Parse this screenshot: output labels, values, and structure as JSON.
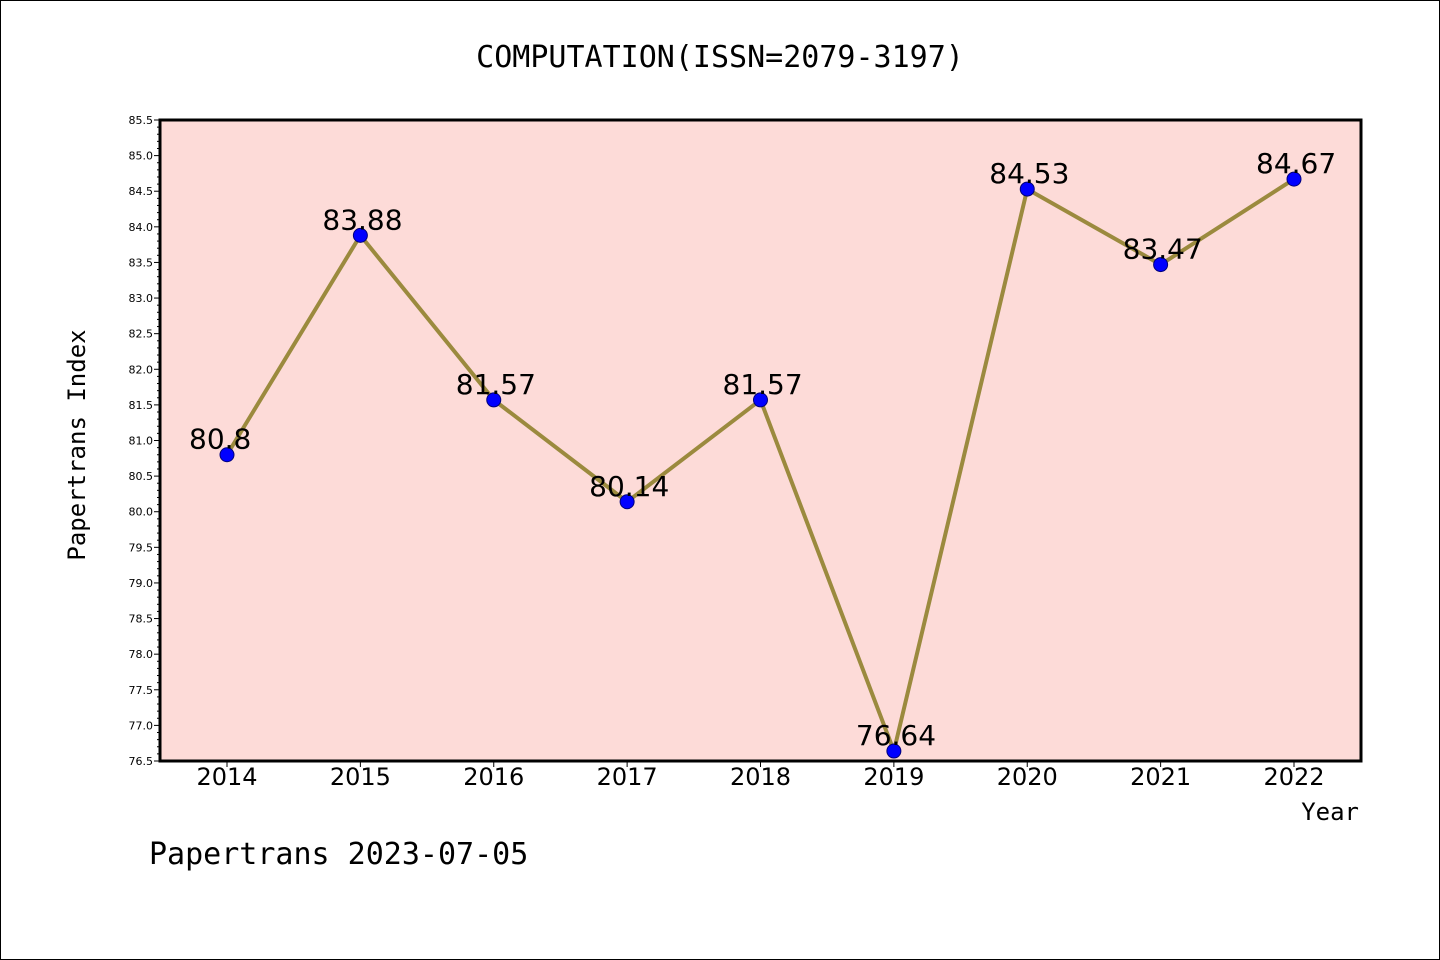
{
  "chart_data": {
    "type": "line",
    "title": "COMPUTATION(ISSN=2079-3197)",
    "xlabel": "Year",
    "ylabel": "Papertrans Index",
    "categories": [
      "2014",
      "2015",
      "2016",
      "2017",
      "2018",
      "2019",
      "2020",
      "2021",
      "2022"
    ],
    "series": [
      {
        "values": [
          80.8,
          83.88,
          81.57,
          80.14,
          81.57,
          76.64,
          84.53,
          83.47,
          84.67
        ],
        "data_labels": [
          "80.8",
          "83.88",
          "81.57",
          "80.14",
          "81.57",
          "76.64",
          "84.53",
          "83.47",
          "84.67"
        ]
      }
    ],
    "ylim": [
      76.5,
      85.5
    ],
    "yticks": [
      "76.5",
      "77.0",
      "77.5",
      "78.0",
      "78.5",
      "79.0",
      "79.5",
      "80.0",
      "80.5",
      "81.0",
      "81.5",
      "82.0",
      "82.5",
      "83.0",
      "83.5",
      "84.0",
      "84.5",
      "85.0",
      "85.5"
    ],
    "grid": false,
    "legend": "none",
    "colors": {
      "plot_background": "#fddbd8",
      "line": "#9b8a3e",
      "marker": "#0000ff",
      "marker_edge": "#00007a"
    }
  },
  "footer": "Papertrans 2023-07-05"
}
